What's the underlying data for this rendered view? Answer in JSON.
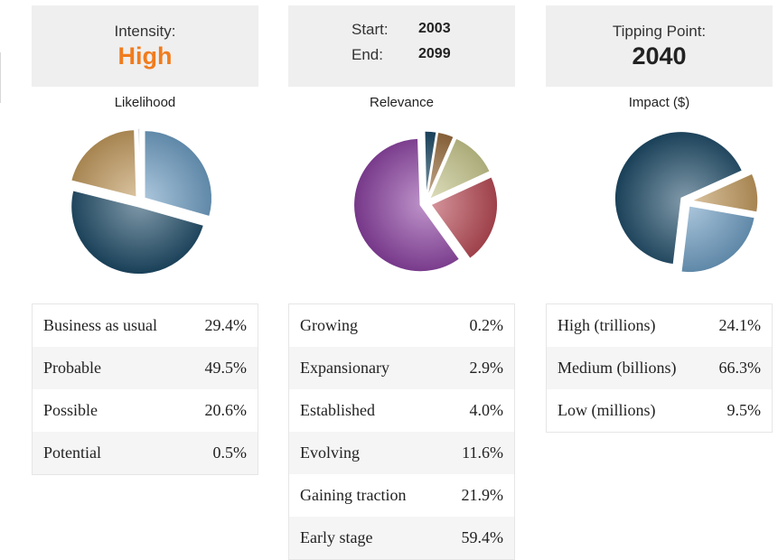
{
  "header": {
    "intensity_label": "Intensity:",
    "intensity_value": "High",
    "start_label": "Start:",
    "start_value": "2003",
    "end_label": "End:",
    "end_value": "2099",
    "tipping_label": "Tipping Point:",
    "tipping_value": "2040"
  },
  "colors": {
    "intensity_value": "#f07c1e",
    "header_bg": "#efefef"
  },
  "chart_data": [
    {
      "type": "pie",
      "title": "Likelihood",
      "categories": [
        "Business as usual",
        "Probable",
        "Possible",
        "Potential"
      ],
      "values": [
        29.4,
        49.5,
        20.6,
        0.5
      ],
      "value_labels": [
        "29.4%",
        "49.5%",
        "20.6%",
        "0.5%"
      ],
      "colors": [
        "#6f9fc4",
        "#1c4a66",
        "#c39b5e",
        "#e6e6e6"
      ]
    },
    {
      "type": "pie",
      "title": "Relevance",
      "categories": [
        "Growing",
        "Expansionary",
        "Established",
        "Evolving",
        "Gaining traction",
        "Early stage"
      ],
      "values": [
        0.2,
        2.9,
        4.0,
        11.6,
        21.9,
        59.4
      ],
      "value_labels": [
        "0.2%",
        "2.9%",
        "4.0%",
        "11.6%",
        "21.9%",
        "59.4%"
      ],
      "colors": [
        "#d0d0d0",
        "#1c4a66",
        "#9b6f3f",
        "#c9c98e",
        "#b94a55",
        "#8a3fa0"
      ]
    },
    {
      "type": "pie",
      "title": "Impact ($)",
      "categories": [
        "High (trillions)",
        "Medium (billions)",
        "Low (millions)"
      ],
      "values": [
        24.1,
        66.3,
        9.5
      ],
      "value_labels": [
        "24.1%",
        "66.3%",
        "9.5%"
      ],
      "colors": [
        "#6f9fc4",
        "#1c4a66",
        "#c39b5e"
      ]
    }
  ]
}
